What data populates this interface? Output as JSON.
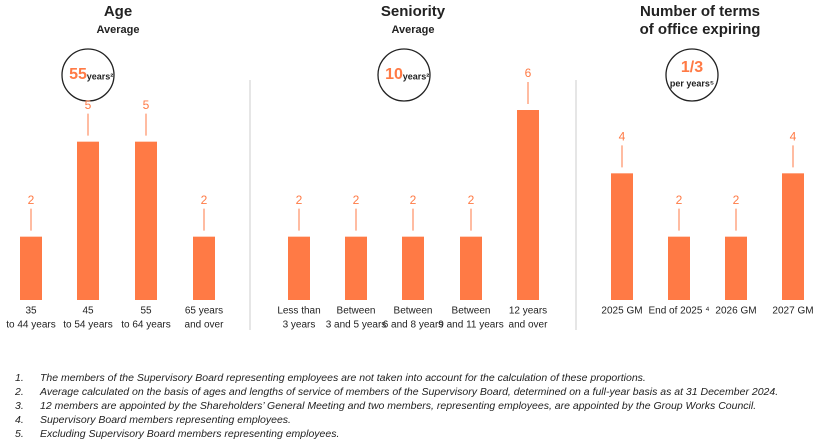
{
  "chart_data": [
    {
      "type": "bar",
      "title": [
        "Age"
      ],
      "subtitle": "Average",
      "badge_value": 55,
      "badge_unit": "years²",
      "categories": [
        [
          "35",
          "to 44 years"
        ],
        [
          "45",
          "to 54 years"
        ],
        [
          "55",
          "to 64 years"
        ],
        [
          "65 years",
          "and over"
        ]
      ],
      "values": [
        2,
        5,
        5,
        2
      ],
      "color": "#ff7a45",
      "ylim": [
        0,
        6
      ]
    },
    {
      "type": "bar",
      "title": [
        "Seniority"
      ],
      "subtitle": "Average",
      "badge_value": 10,
      "badge_unit": "years²",
      "categories": [
        [
          "Less than",
          "3 years"
        ],
        [
          "Between",
          "3 and 5 years"
        ],
        [
          "Between",
          "6 and 8 years"
        ],
        [
          "Between",
          "9 and 11 years"
        ],
        [
          "12 years",
          "and over"
        ]
      ],
      "values": [
        2,
        2,
        2,
        2,
        6
      ],
      "color": "#ff7a45",
      "ylim": [
        0,
        6
      ]
    },
    {
      "type": "bar",
      "title": [
        "Number of terms",
        "of office expiring"
      ],
      "badge_value": "1/3",
      "badge_unit": "per years⁵",
      "categories": [
        [
          "2025 GM"
        ],
        [
          "End of 2025 ⁴"
        ],
        [
          "2026 GM"
        ],
        [
          "2027 GM"
        ]
      ],
      "values": [
        4,
        2,
        2,
        4
      ],
      "color": "#ff7a45",
      "ylim": [
        0,
        6
      ]
    }
  ],
  "footnotes": [
    {
      "number": "1.",
      "text": "The members of the Supervisory Board representing employees are not taken into account for the calculation of these proportions."
    },
    {
      "number": "2.",
      "text": "Average calculated on the basis of ages and lengths of service of members of the Supervisory Board, determined on a full-year basis as at 31 December 2024."
    },
    {
      "number": "3.",
      "text": "12 members are appointed by the Shareholders’ General Meeting and two members, representing employees, are appointed by the Group Works Council."
    },
    {
      "number": "4.",
      "text": "Supervisory Board members representing employees."
    },
    {
      "number": "5.",
      "text": "Excluding Supervisory Board members representing employees."
    }
  ]
}
